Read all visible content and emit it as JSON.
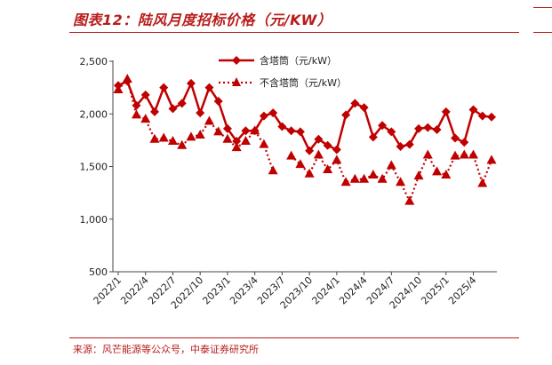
{
  "title": "图表12：陆风月度招标价格（元/KW）",
  "source": "来源：风芒能源等公众号，中泰证券研究所",
  "colors": {
    "primary": "#c00000",
    "accent": "#b91c1c"
  },
  "chart_data": {
    "type": "line",
    "ylim": [
      500,
      2500
    ],
    "yticks": [
      500,
      1000,
      1500,
      2000,
      2500
    ],
    "ytick_labels": [
      "500",
      "1,000",
      "1,500",
      "2,000",
      "2,500"
    ],
    "xtick_labels": [
      "2022/1",
      "2022/4",
      "2022/7",
      "2022/10",
      "2023/1",
      "2023/4",
      "2023/7",
      "2023/10",
      "2024/1",
      "2024/4",
      "2024/7",
      "2024/10",
      "2025/1",
      "2025/4"
    ],
    "xtick_every": 3,
    "legend_position": "top-center",
    "x": [
      "2022/1",
      "2022/2",
      "2022/3",
      "2022/4",
      "2022/5",
      "2022/6",
      "2022/7",
      "2022/8",
      "2022/9",
      "2022/10",
      "2022/11",
      "2022/12",
      "2023/1",
      "2023/2",
      "2023/3",
      "2023/4",
      "2023/5",
      "2023/6",
      "2023/7",
      "2023/8",
      "2023/9",
      "2023/10",
      "2023/11",
      "2023/12",
      "2024/1",
      "2024/2",
      "2024/3",
      "2024/4",
      "2024/5",
      "2024/6",
      "2024/7",
      "2024/8",
      "2024/9",
      "2024/10",
      "2024/11",
      "2024/12",
      "2025/1",
      "2025/2",
      "2025/3",
      "2025/4",
      "2025/5",
      "2025/6"
    ],
    "series": [
      {
        "name": "含塔筒（元/kW）",
        "style": "solid-diamond",
        "values": [
          2270,
          2310,
          2080,
          2180,
          2020,
          2250,
          2050,
          2100,
          2290,
          2010,
          2250,
          2120,
          1860,
          1740,
          1840,
          1840,
          1980,
          2010,
          1880,
          1840,
          1830,
          1650,
          1760,
          1700,
          1660,
          1990,
          2100,
          2060,
          1780,
          1890,
          1830,
          1690,
          1710,
          1860,
          1870,
          1850,
          2020,
          1770,
          1730,
          2040,
          1980,
          1970
        ]
      },
      {
        "name": "不含塔筒（元/kW）",
        "style": "dotted-triangle",
        "values": [
          2230,
          2330,
          1990,
          1950,
          1760,
          1770,
          1740,
          1700,
          1780,
          1800,
          1930,
          1830,
          1760,
          1680,
          1740,
          1840,
          1710,
          1460,
          null,
          1600,
          1520,
          1430,
          1610,
          1470,
          1560,
          1350,
          1380,
          1380,
          1420,
          1380,
          1510,
          1350,
          1170,
          1410,
          1610,
          1450,
          1420,
          1600,
          1610,
          1610,
          1340,
          1560
        ]
      }
    ]
  }
}
